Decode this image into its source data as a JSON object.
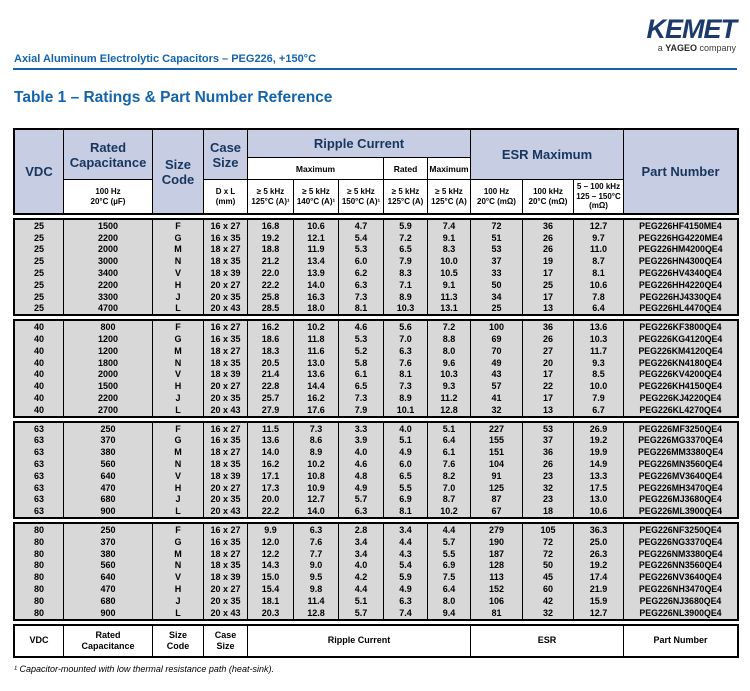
{
  "page": {
    "doc_subtitle": "Axial Aluminum Electrolytic Capacitors – PEG226, +150°C",
    "logo": {
      "brand": "KEMET",
      "tagline_prefix": "a ",
      "tagline_bold": "YAGEO",
      "tagline_suffix": " company"
    },
    "table_title": "Table 1 – Ratings & Part Number Reference",
    "footnote": "¹ Capacitor-mounted with low thermal resistance path (heat-sink)."
  },
  "colors": {
    "accent_blue": "#1464ab",
    "navy_text": "#17365d",
    "header_bg": "#c7cde3",
    "row_bg": "#d8d8d8"
  },
  "table": {
    "header": {
      "vdc": "VDC",
      "rated_capacitance": "Rated\nCapacitance",
      "rated_capacitance_sub": "100 Hz\n20°C (µF)",
      "size_code": "Size\nCode",
      "case_size": "Case\nSize",
      "case_size_sub": "D x L\n(mm)",
      "ripple_current": "Ripple Current",
      "ripple_group_max1": "Maximum",
      "ripple_group_rated": "Rated",
      "ripple_group_max2": "Maximum",
      "ripple_subs": [
        "≥ 5 kHz\n125°C (A)¹",
        "≥ 5 kHz\n140°C (A)¹",
        "≥ 5 kHz\n150°C (A)¹",
        "≥ 5 kHz\n125°C (A)",
        "≥ 5 kHz\n125°C (A)"
      ],
      "esr_maximum": "ESR Maximum",
      "esr_subs": [
        "100 Hz\n20°C (mΩ)",
        "100 kHz\n20°C (mΩ)",
        "5 – 100 kHz\n125 – 150°C\n(mΩ)"
      ],
      "part_number": "Part Number"
    },
    "footer": [
      "VDC",
      "Rated\nCapacitance",
      "Size\nCode",
      "Case\nSize",
      "Ripple Current",
      "ESR",
      "Part Number"
    ],
    "groups": [
      {
        "vdc": "25",
        "rows": [
          [
            "25",
            "1500",
            "F",
            "16 x 27",
            "16.8",
            "10.6",
            "4.7",
            "5.9",
            "7.4",
            "72",
            "36",
            "12.7",
            "PEG226HF4150ME4"
          ],
          [
            "25",
            "2200",
            "G",
            "16 x 35",
            "19.2",
            "12.1",
            "5.4",
            "7.2",
            "9.1",
            "51",
            "26",
            "9.7",
            "PEG226HG4220ME4"
          ],
          [
            "25",
            "2000",
            "M",
            "18 x 27",
            "18.8",
            "11.9",
            "5.3",
            "6.5",
            "8.3",
            "53",
            "26",
            "11.0",
            "PEG226HM4200QE4"
          ],
          [
            "25",
            "3000",
            "N",
            "18 x 35",
            "21.2",
            "13.4",
            "6.0",
            "7.9",
            "10.0",
            "37",
            "19",
            "8.7",
            "PEG226HN4300QE4"
          ],
          [
            "25",
            "3400",
            "V",
            "18 x 39",
            "22.0",
            "13.9",
            "6.2",
            "8.3",
            "10.5",
            "33",
            "17",
            "8.1",
            "PEG226HV4340QE4"
          ],
          [
            "25",
            "2200",
            "H",
            "20 x 27",
            "22.2",
            "14.0",
            "6.3",
            "7.1",
            "9.1",
            "50",
            "25",
            "10.6",
            "PEG226HH4220QE4"
          ],
          [
            "25",
            "3300",
            "J",
            "20 x 35",
            "25.8",
            "16.3",
            "7.3",
            "8.9",
            "11.3",
            "34",
            "17",
            "7.8",
            "PEG226HJ4330QE4"
          ],
          [
            "25",
            "4700",
            "L",
            "20 x 43",
            "28.5",
            "18.0",
            "8.1",
            "10.3",
            "13.1",
            "25",
            "13",
            "6.4",
            "PEG226HL4470QE4"
          ]
        ]
      },
      {
        "vdc": "40",
        "rows": [
          [
            "40",
            "800",
            "F",
            "16 x 27",
            "16.2",
            "10.2",
            "4.6",
            "5.6",
            "7.2",
            "100",
            "36",
            "13.6",
            "PEG226KF3800QE4"
          ],
          [
            "40",
            "1200",
            "G",
            "16 x 35",
            "18.6",
            "11.8",
            "5.3",
            "7.0",
            "8.8",
            "69",
            "26",
            "10.3",
            "PEG226KG4120QE4"
          ],
          [
            "40",
            "1200",
            "M",
            "18 x 27",
            "18.3",
            "11.6",
            "5.2",
            "6.3",
            "8.0",
            "70",
            "27",
            "11.7",
            "PEG226KM4120QE4"
          ],
          [
            "40",
            "1800",
            "N",
            "18 x 35",
            "20.5",
            "13.0",
            "5.8",
            "7.6",
            "9.6",
            "49",
            "20",
            "9.3",
            "PEG226KN4180QE4"
          ],
          [
            "40",
            "2000",
            "V",
            "18 x 39",
            "21.4",
            "13.6",
            "6.1",
            "8.1",
            "10.3",
            "43",
            "17",
            "8.5",
            "PEG226KV4200QE4"
          ],
          [
            "40",
            "1500",
            "H",
            "20 x 27",
            "22.8",
            "14.4",
            "6.5",
            "7.3",
            "9.3",
            "57",
            "22",
            "10.0",
            "PEG226KH4150QE4"
          ],
          [
            "40",
            "2200",
            "J",
            "20 x 35",
            "25.7",
            "16.2",
            "7.3",
            "8.9",
            "11.2",
            "41",
            "17",
            "7.9",
            "PEG226KJ4220QE4"
          ],
          [
            "40",
            "2700",
            "L",
            "20 x 43",
            "27.9",
            "17.6",
            "7.9",
            "10.1",
            "12.8",
            "32",
            "13",
            "6.7",
            "PEG226KL4270QE4"
          ]
        ]
      },
      {
        "vdc": "63",
        "rows": [
          [
            "63",
            "250",
            "F",
            "16 x 27",
            "11.5",
            "7.3",
            "3.3",
            "4.0",
            "5.1",
            "227",
            "53",
            "26.9",
            "PEG226MF3250QE4"
          ],
          [
            "63",
            "370",
            "G",
            "16 x 35",
            "13.6",
            "8.6",
            "3.9",
            "5.1",
            "6.4",
            "155",
            "37",
            "19.2",
            "PEG226MG3370QE4"
          ],
          [
            "63",
            "380",
            "M",
            "18 x 27",
            "14.0",
            "8.9",
            "4.0",
            "4.9",
            "6.1",
            "151",
            "36",
            "19.9",
            "PEG226MM3380QE4"
          ],
          [
            "63",
            "560",
            "N",
            "18 x 35",
            "16.2",
            "10.2",
            "4.6",
            "6.0",
            "7.6",
            "104",
            "26",
            "14.9",
            "PEG226MN3560QE4"
          ],
          [
            "63",
            "640",
            "V",
            "18 x 39",
            "17.1",
            "10.8",
            "4.8",
            "6.5",
            "8.2",
            "91",
            "23",
            "13.3",
            "PEG226MV3640QE4"
          ],
          [
            "63",
            "470",
            "H",
            "20 x 27",
            "17.3",
            "10.9",
            "4.9",
            "5.5",
            "7.0",
            "125",
            "32",
            "17.5",
            "PEG226MH3470QE4"
          ],
          [
            "63",
            "680",
            "J",
            "20 x 35",
            "20.0",
            "12.7",
            "5.7",
            "6.9",
            "8.7",
            "87",
            "23",
            "13.0",
            "PEG226MJ3680QE4"
          ],
          [
            "63",
            "900",
            "L",
            "20 x 43",
            "22.2",
            "14.0",
            "6.3",
            "8.1",
            "10.2",
            "67",
            "18",
            "10.6",
            "PEG226ML3900QE4"
          ]
        ]
      },
      {
        "vdc": "80",
        "rows": [
          [
            "80",
            "250",
            "F",
            "16 x 27",
            "9.9",
            "6.3",
            "2.8",
            "3.4",
            "4.4",
            "279",
            "105",
            "36.3",
            "PEG226NF3250QE4"
          ],
          [
            "80",
            "370",
            "G",
            "16 x 35",
            "12.0",
            "7.6",
            "3.4",
            "4.4",
            "5.7",
            "190",
            "72",
            "25.0",
            "PEG226NG3370QE4"
          ],
          [
            "80",
            "380",
            "M",
            "18 x 27",
            "12.2",
            "7.7",
            "3.4",
            "4.3",
            "5.5",
            "187",
            "72",
            "26.3",
            "PEG226NM3380QE4"
          ],
          [
            "80",
            "560",
            "N",
            "18 x 35",
            "14.3",
            "9.0",
            "4.0",
            "5.4",
            "6.9",
            "128",
            "50",
            "19.2",
            "PEG226NN3560QE4"
          ],
          [
            "80",
            "640",
            "V",
            "18 x 39",
            "15.0",
            "9.5",
            "4.2",
            "5.9",
            "7.5",
            "113",
            "45",
            "17.4",
            "PEG226NV3640QE4"
          ],
          [
            "80",
            "470",
            "H",
            "20 x 27",
            "15.4",
            "9.8",
            "4.4",
            "4.9",
            "6.4",
            "152",
            "60",
            "21.9",
            "PEG226NH3470QE4"
          ],
          [
            "80",
            "680",
            "J",
            "20 x 35",
            "18.1",
            "11.4",
            "5.1",
            "6.3",
            "8.0",
            "106",
            "42",
            "15.9",
            "PEG226NJ3680QE4"
          ],
          [
            "80",
            "900",
            "L",
            "20 x 43",
            "20.3",
            "12.8",
            "5.7",
            "7.4",
            "9.4",
            "81",
            "32",
            "12.7",
            "PEG226NL3900QE4"
          ]
        ]
      }
    ]
  }
}
